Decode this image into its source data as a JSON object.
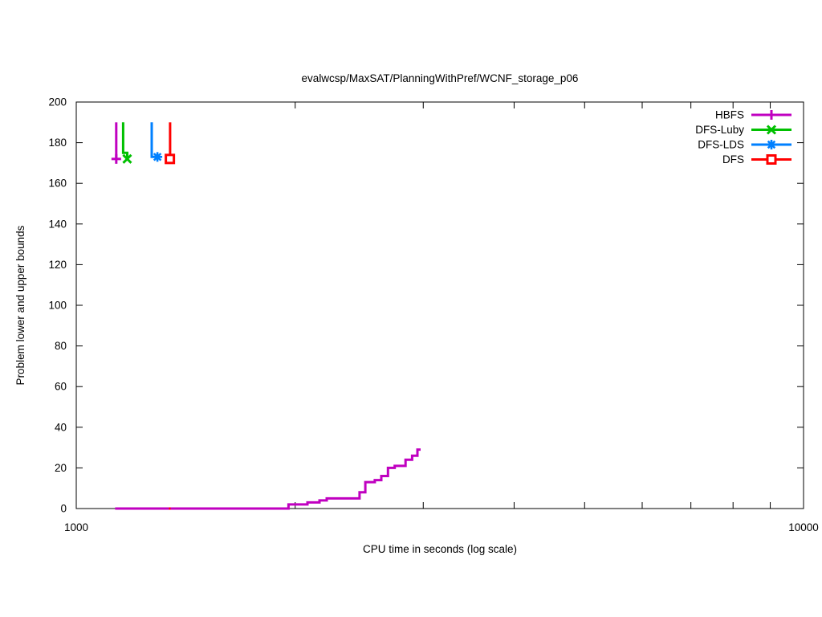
{
  "figure": {
    "background": "#ffffff",
    "text_color": "#000000",
    "border_color": "#000000"
  },
  "chart_data": {
    "type": "line",
    "subtype": "step-bounds",
    "title": "evalwcsp/MaxSAT/PlanningWithPref/WCNF_storage_p06",
    "xlabel": "CPU time in seconds (log scale)",
    "ylabel": "Problem lower and upper bounds",
    "xscale": "log",
    "xlim": [
      1000,
      10000
    ],
    "ylim": [
      0,
      200
    ],
    "xticks_major": [
      {
        "value": 1000,
        "label": "1000"
      },
      {
        "value": 10000,
        "label": "10000"
      }
    ],
    "xticks_minor": [
      2000,
      3000,
      4000,
      5000,
      6000,
      7000,
      8000,
      9000
    ],
    "yticks": [
      {
        "value": 0,
        "label": "0"
      },
      {
        "value": 20,
        "label": "20"
      },
      {
        "value": 40,
        "label": "40"
      },
      {
        "value": 60,
        "label": "60"
      },
      {
        "value": 80,
        "label": "80"
      },
      {
        "value": 100,
        "label": "100"
      },
      {
        "value": 120,
        "label": "120"
      },
      {
        "value": 140,
        "label": "140"
      },
      {
        "value": 160,
        "label": "160"
      },
      {
        "value": 180,
        "label": "180"
      },
      {
        "value": 200,
        "label": "200"
      }
    ],
    "grid": false,
    "ticks_mirrored": true,
    "legend_position": "top-right-inside",
    "series": [
      {
        "name": "HBFS",
        "color": "#c000c0",
        "marker": "plus",
        "upper": [
          [
            1135,
            190
          ],
          [
            1135,
            172
          ]
        ],
        "lower": [
          [
            1131,
            0
          ],
          [
            1958,
            0
          ],
          [
            1958,
            2
          ],
          [
            2079,
            2
          ],
          [
            2079,
            3
          ],
          [
            2160,
            3
          ],
          [
            2160,
            4
          ],
          [
            2210,
            4
          ],
          [
            2210,
            5
          ],
          [
            2452,
            5
          ],
          [
            2452,
            8
          ],
          [
            2497,
            8
          ],
          [
            2497,
            13
          ],
          [
            2573,
            13
          ],
          [
            2573,
            14
          ],
          [
            2627,
            14
          ],
          [
            2627,
            16
          ],
          [
            2683,
            16
          ],
          [
            2683,
            20
          ],
          [
            2741,
            20
          ],
          [
            2741,
            21
          ],
          [
            2836,
            21
          ],
          [
            2836,
            24
          ],
          [
            2896,
            24
          ],
          [
            2896,
            26
          ],
          [
            2945,
            26
          ],
          [
            2945,
            29
          ],
          [
            2975,
            29
          ]
        ],
        "marker_at": [
          1135,
          172
        ]
      },
      {
        "name": "DFS-Luby",
        "color": "#00c000",
        "marker": "cross",
        "upper": [
          [
            1160,
            190
          ],
          [
            1160,
            175
          ],
          [
            1175,
            175
          ],
          [
            1175,
            172
          ]
        ],
        "lower": [
          [
            1158,
            0
          ],
          [
            1176,
            0
          ]
        ],
        "marker_at": [
          1175,
          172
        ]
      },
      {
        "name": "DFS-LDS",
        "color": "#0080ff",
        "marker": "asterisk",
        "upper": [
          [
            1270,
            190
          ],
          [
            1270,
            173
          ],
          [
            1293,
            173
          ]
        ],
        "lower": [
          [
            1268,
            0
          ],
          [
            1294,
            0
          ]
        ],
        "marker_at": [
          1293,
          173
        ]
      },
      {
        "name": "DFS",
        "color": "#ff0000",
        "marker": "square-open",
        "upper": [
          [
            1346,
            190
          ],
          [
            1346,
            172
          ]
        ],
        "lower": [
          [
            1341,
            0
          ],
          [
            1348,
            0
          ]
        ],
        "marker_at": [
          1345,
          172
        ]
      }
    ],
    "draw_order": [
      {
        "series": "DFS-Luby",
        "part": "lower",
        "marker": false
      },
      {
        "series": "DFS-LDS",
        "part": "lower",
        "marker": false
      },
      {
        "series": "HBFS",
        "part": "lower",
        "marker": false
      },
      {
        "series": "HBFS",
        "part": "upper",
        "marker": true
      },
      {
        "series": "DFS-Luby",
        "part": "upper",
        "marker": true
      },
      {
        "series": "DFS-LDS",
        "part": "upper",
        "marker": true
      },
      {
        "series": "DFS",
        "part": "upper",
        "marker": true
      },
      {
        "series": "DFS",
        "part": "lower",
        "marker": false
      }
    ]
  }
}
